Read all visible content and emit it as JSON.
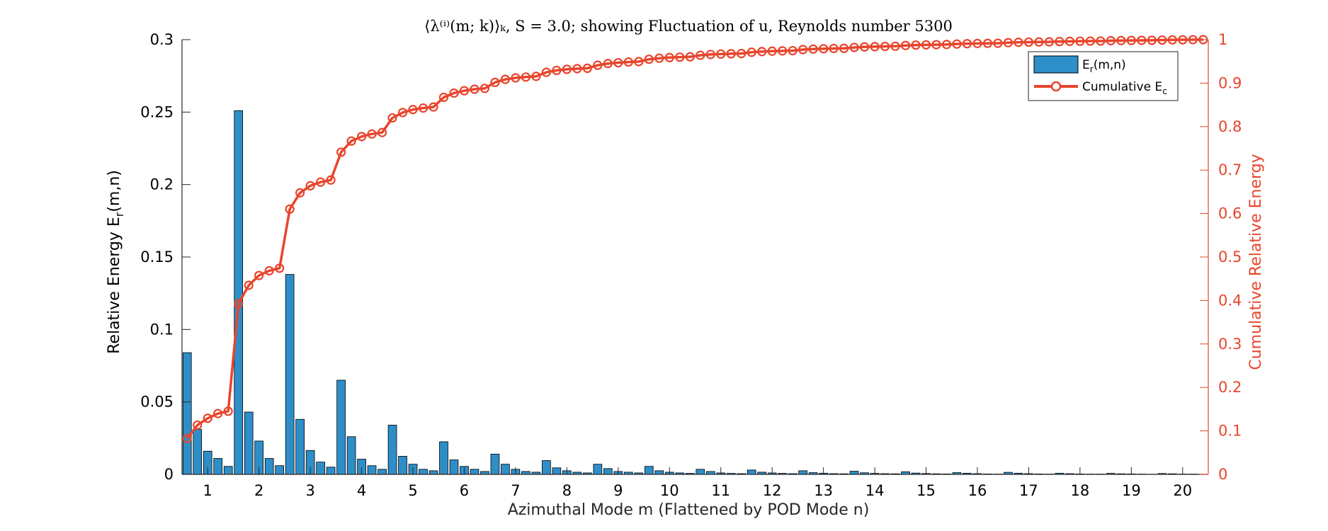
{
  "chart_data": {
    "type": "bar+line",
    "title": "⟨λ⁽ⁱ⁾(m; k)⟩ₖ, S = 3.0; showing Fluctuation of u, Reynolds number 5300",
    "xlabel": "Azimuthal Mode m (Flattened by POD Mode n)",
    "ylabel_left": "Relative Energy E_r(m,n)",
    "ylabel_right": "Cumulative Relative Energy",
    "x_tick_labels": [
      "1",
      "2",
      "3",
      "4",
      "5",
      "6",
      "7",
      "8",
      "9",
      "10",
      "11",
      "12",
      "13",
      "14",
      "15",
      "16",
      "17",
      "18",
      "19",
      "20"
    ],
    "ylim_left": [
      0,
      0.3
    ],
    "ylim_right": [
      0,
      1
    ],
    "y_ticks_left": [
      "0",
      "0.05",
      "0.1",
      "0.15",
      "0.2",
      "0.25",
      "0.3"
    ],
    "y_ticks_right": [
      "0",
      "0.1",
      "0.2",
      "0.3",
      "0.4",
      "0.5",
      "0.6",
      "0.7",
      "0.8",
      "0.9",
      "1"
    ],
    "pod_modes_per_m": 5,
    "series": [
      {
        "name": "E_r(m,n)",
        "kind": "bar",
        "color": "#2e8ec8",
        "values": [
          0.084,
          0.031,
          0.016,
          0.011,
          0.0055,
          0.251,
          0.043,
          0.023,
          0.011,
          0.006,
          0.138,
          0.038,
          0.0165,
          0.0085,
          0.005,
          0.065,
          0.026,
          0.0105,
          0.006,
          0.0035,
          0.034,
          0.0125,
          0.007,
          0.0035,
          0.0025,
          0.0225,
          0.01,
          0.0055,
          0.0035,
          0.002,
          0.014,
          0.007,
          0.0035,
          0.002,
          0.0015,
          0.0095,
          0.0045,
          0.0025,
          0.0015,
          0.001,
          0.007,
          0.004,
          0.002,
          0.0015,
          0.001,
          0.0055,
          0.0025,
          0.0015,
          0.001,
          0.0007,
          0.0035,
          0.002,
          0.001,
          0.0007,
          0.0005,
          0.003,
          0.0015,
          0.001,
          0.0007,
          0.0005,
          0.0025,
          0.0012,
          0.0008,
          0.0005,
          0.0004,
          0.0022,
          0.0011,
          0.0007,
          0.0005,
          0.0004,
          0.0018,
          0.0009,
          0.0006,
          0.0004,
          0.0003,
          0.0012,
          0.0008,
          0.0005,
          0.0003,
          0.0002,
          0.0014,
          0.0008,
          0.0005,
          0.0003,
          0.0002,
          0.0008,
          0.0005,
          0.0003,
          0.0002,
          0.0002,
          0.0007,
          0.0004,
          0.0003,
          0.0002,
          0.0001,
          0.0006,
          0.0004,
          0.0002,
          0.0002,
          0.0001
        ]
      },
      {
        "name": "Cumulative E_c",
        "kind": "line",
        "color": "#e8452c",
        "cumulative_of": "E_r(m,n)"
      }
    ],
    "legend": {
      "position": "top-right",
      "entries": [
        "E_r(m,n)",
        "Cumulative E_c"
      ]
    }
  }
}
